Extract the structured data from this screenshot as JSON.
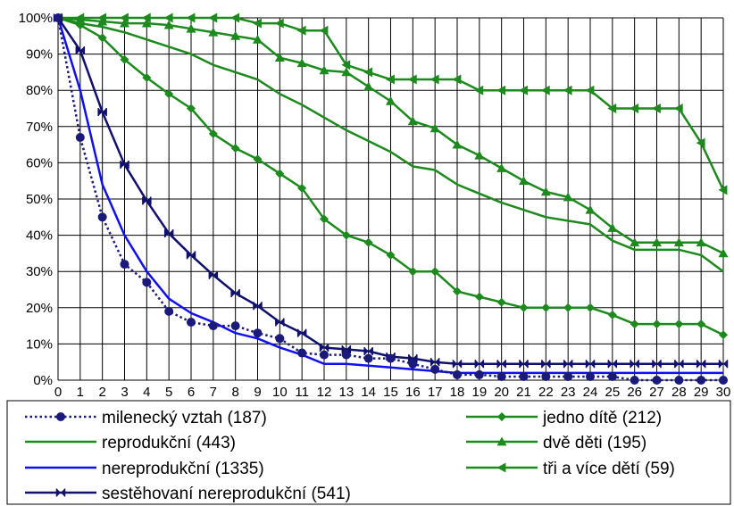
{
  "chart_data": {
    "type": "line",
    "x": [
      0,
      1,
      2,
      3,
      4,
      5,
      6,
      7,
      8,
      9,
      10,
      11,
      12,
      13,
      14,
      15,
      16,
      17,
      18,
      19,
      20,
      21,
      22,
      23,
      24,
      25,
      26,
      27,
      28,
      29,
      30
    ],
    "xlim": [
      0,
      30
    ],
    "ylim": [
      0,
      100
    ],
    "y_unit": "%",
    "y_ticks": [
      0,
      10,
      20,
      30,
      40,
      50,
      60,
      70,
      80,
      90,
      100
    ],
    "y_tick_labels": [
      "0%",
      "10%",
      "20%",
      "30%",
      "40%",
      "50%",
      "60%",
      "70%",
      "80%",
      "90%",
      "100%"
    ],
    "x_tick_labels": [
      "0",
      "1",
      "2",
      "3",
      "4",
      "5",
      "6",
      "7",
      "8",
      "9",
      "10",
      "11",
      "12",
      "13",
      "14",
      "15",
      "16",
      "17",
      "18",
      "19",
      "20",
      "21",
      "22",
      "23",
      "24",
      "25",
      "26",
      "27",
      "28",
      "29",
      "30"
    ],
    "grid": true,
    "legend_position": "bottom",
    "series": [
      {
        "name": "milenecký vztah (187)",
        "color": "#1a1a7a",
        "dash": "dotted",
        "marker": "circle",
        "values": [
          100,
          67,
          45,
          32,
          27,
          19,
          16,
          15,
          15,
          13,
          11.5,
          7.5,
          7,
          7,
          6,
          6,
          4.5,
          3,
          1.5,
          1.5,
          1,
          1,
          1,
          1,
          1,
          1,
          0,
          0,
          0,
          0,
          0
        ]
      },
      {
        "name": "reprodukční (443)",
        "color": "#1c8a1c",
        "dash": "solid",
        "marker": "none",
        "values": [
          100,
          98.5,
          97.5,
          96,
          94,
          92,
          90,
          87,
          85,
          83,
          79,
          76,
          72.5,
          69,
          66,
          63,
          59,
          58,
          54,
          51.5,
          49,
          47,
          45,
          44,
          43,
          38.5,
          36,
          36,
          36,
          34.5,
          30
        ]
      },
      {
        "name": "nereprodukční (1335)",
        "color": "#1010ee",
        "dash": "solid",
        "marker": "none",
        "values": [
          100,
          80,
          54,
          40,
          30,
          22.5,
          18.5,
          16,
          13,
          11.5,
          9,
          7,
          4.5,
          4.5,
          4,
          3.5,
          3,
          2.5,
          2,
          2,
          2,
          2,
          2,
          2,
          2,
          2,
          2,
          2,
          2,
          2,
          2
        ]
      },
      {
        "name": "sestěhovaní nereprodukční (541)",
        "color": "#10106e",
        "dash": "solid",
        "marker": "bowtie",
        "values": [
          100,
          91,
          74,
          59.5,
          49.5,
          40.5,
          34.5,
          29,
          24,
          20.5,
          16,
          13,
          9,
          8.5,
          8,
          6.5,
          6,
          5,
          4.5,
          4.5,
          4.5,
          4.5,
          4.5,
          4.5,
          4.5,
          4.5,
          4.5,
          4.5,
          4.5,
          4.5,
          4.5
        ]
      },
      {
        "name": "jedno dítě (212)",
        "color": "#1c8a1c",
        "dash": "solid",
        "marker": "diamond",
        "values": [
          100,
          98,
          94.5,
          88.5,
          83.5,
          79,
          75,
          68,
          64,
          61,
          57,
          53,
          44.5,
          40,
          38,
          34.5,
          30,
          30,
          24.5,
          23,
          21.5,
          20,
          20,
          20,
          20,
          18,
          15.5,
          15.5,
          15.5,
          15.5,
          12.5
        ]
      },
      {
        "name": "dvě děti (195)",
        "color": "#1c8a1c",
        "dash": "solid",
        "marker": "triangle-up",
        "values": [
          100,
          99.5,
          99,
          98.5,
          98.5,
          98,
          97,
          96,
          95,
          94,
          89,
          87.5,
          85.5,
          85,
          81,
          77,
          71.5,
          69.5,
          65,
          62,
          58.5,
          55,
          52,
          50.5,
          47,
          42,
          38,
          38,
          38,
          38,
          35
        ]
      },
      {
        "name": "tři a více dětí (59)",
        "color": "#1c8a1c",
        "dash": "solid",
        "marker": "triangle-left",
        "values": [
          100,
          100,
          100,
          100,
          100,
          100,
          100,
          100,
          100,
          98.5,
          98.5,
          96.5,
          96.5,
          87,
          85,
          83,
          83,
          83,
          83,
          80,
          80,
          80,
          80,
          80,
          80,
          75,
          75,
          75,
          75,
          65.5,
          52.5
        ]
      }
    ]
  }
}
